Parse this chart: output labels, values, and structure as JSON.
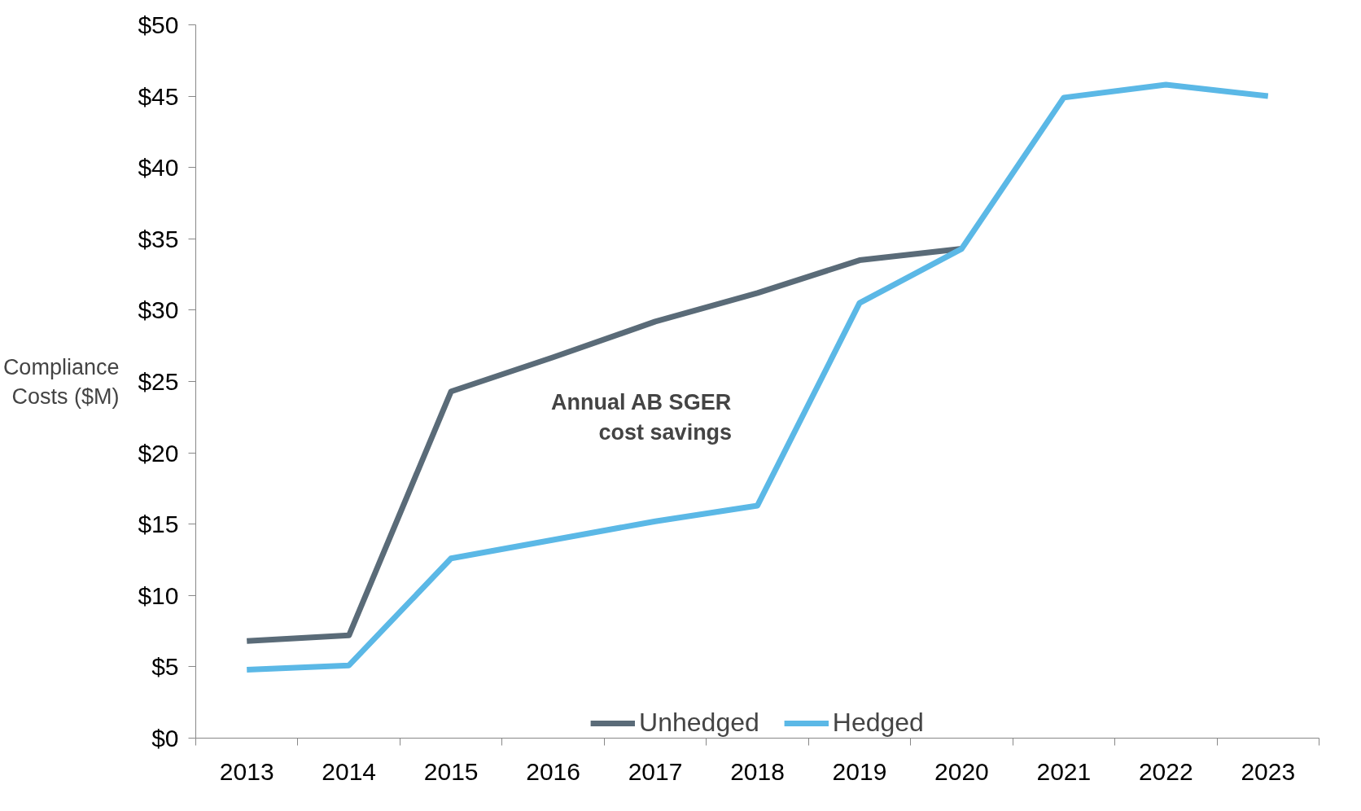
{
  "chart_data": {
    "type": "line",
    "ylabel": "Compliance Costs ($M)",
    "categories": [
      "2013",
      "2014",
      "2015",
      "2016",
      "2017",
      "2018",
      "2019",
      "2020",
      "2021",
      "2022",
      "2023"
    ],
    "series": [
      {
        "name": "Unhedged",
        "color": "#5a6b78",
        "values": [
          6.8,
          7.2,
          24.3,
          26.7,
          29.2,
          31.2,
          33.5,
          34.3,
          null,
          null,
          null
        ]
      },
      {
        "name": "Hedged",
        "color": "#5bb8e6",
        "values": [
          4.8,
          5.1,
          12.6,
          13.9,
          15.2,
          16.3,
          30.5,
          34.3,
          44.9,
          45.8,
          45.0
        ]
      }
    ],
    "ylim": [
      0,
      50
    ],
    "yticks": [
      {
        "value": 0,
        "label": "$0"
      },
      {
        "value": 5,
        "label": "$5"
      },
      {
        "value": 10,
        "label": "$10"
      },
      {
        "value": 15,
        "label": "$15"
      },
      {
        "value": 20,
        "label": "$20"
      },
      {
        "value": 25,
        "label": "$25"
      },
      {
        "value": 30,
        "label": "$30"
      },
      {
        "value": 35,
        "label": "$35"
      },
      {
        "value": 40,
        "label": "$40"
      },
      {
        "value": 45,
        "label": "$45"
      },
      {
        "value": 50,
        "label": "$50"
      }
    ],
    "annotations": [
      "Annual AB SGER cost savings"
    ],
    "grid": false,
    "legend": "bottom",
    "marker": "none",
    "line_style": "solid"
  }
}
